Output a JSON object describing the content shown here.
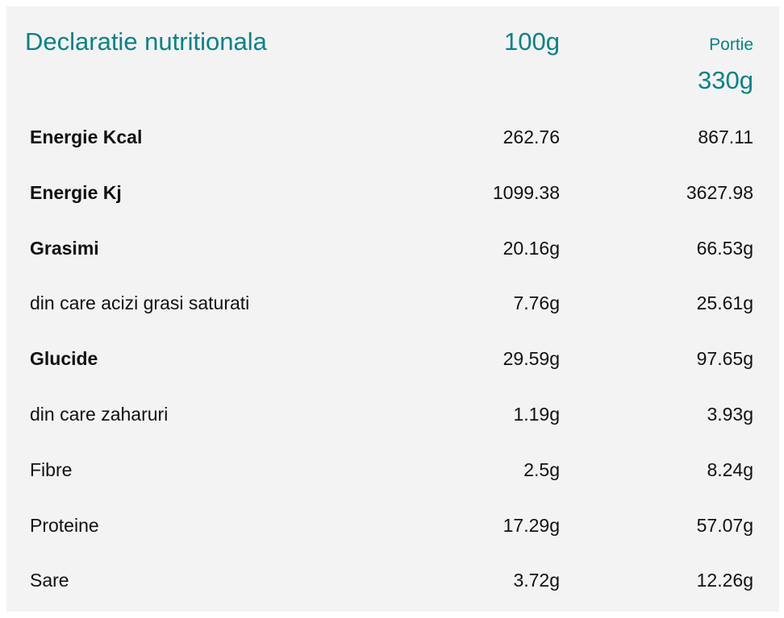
{
  "header": {
    "title": "Declaratie nutritionala",
    "per_100_label": "100g",
    "portion_label": "Portie",
    "portion_weight": "330g"
  },
  "rows": [
    {
      "name": "Energie Kcal",
      "per_100": "262.76",
      "per_portion": "867.11",
      "bold": true
    },
    {
      "name": "Energie Kj",
      "per_100": "1099.38",
      "per_portion": "3627.98",
      "bold": true
    },
    {
      "name": "Grasimi",
      "per_100": "20.16g",
      "per_portion": "66.53g",
      "bold": true
    },
    {
      "name": "din care acizi grasi saturati",
      "per_100": "7.76g",
      "per_portion": "25.61g",
      "bold": false
    },
    {
      "name": "Glucide",
      "per_100": "29.59g",
      "per_portion": "97.65g",
      "bold": true
    },
    {
      "name": "din care zaharuri",
      "per_100": "1.19g",
      "per_portion": "3.93g",
      "bold": false
    },
    {
      "name": "Fibre",
      "per_100": "2.5g",
      "per_portion": "8.24g",
      "bold": false
    },
    {
      "name": "Proteine",
      "per_100": "17.29g",
      "per_portion": "57.07g",
      "bold": false
    },
    {
      "name": "Sare",
      "per_100": "3.72g",
      "per_portion": "12.26g",
      "bold": false
    }
  ],
  "colors": {
    "accent": "#0b8186",
    "panel_background": "#f3f3f3",
    "text": "#111111"
  }
}
